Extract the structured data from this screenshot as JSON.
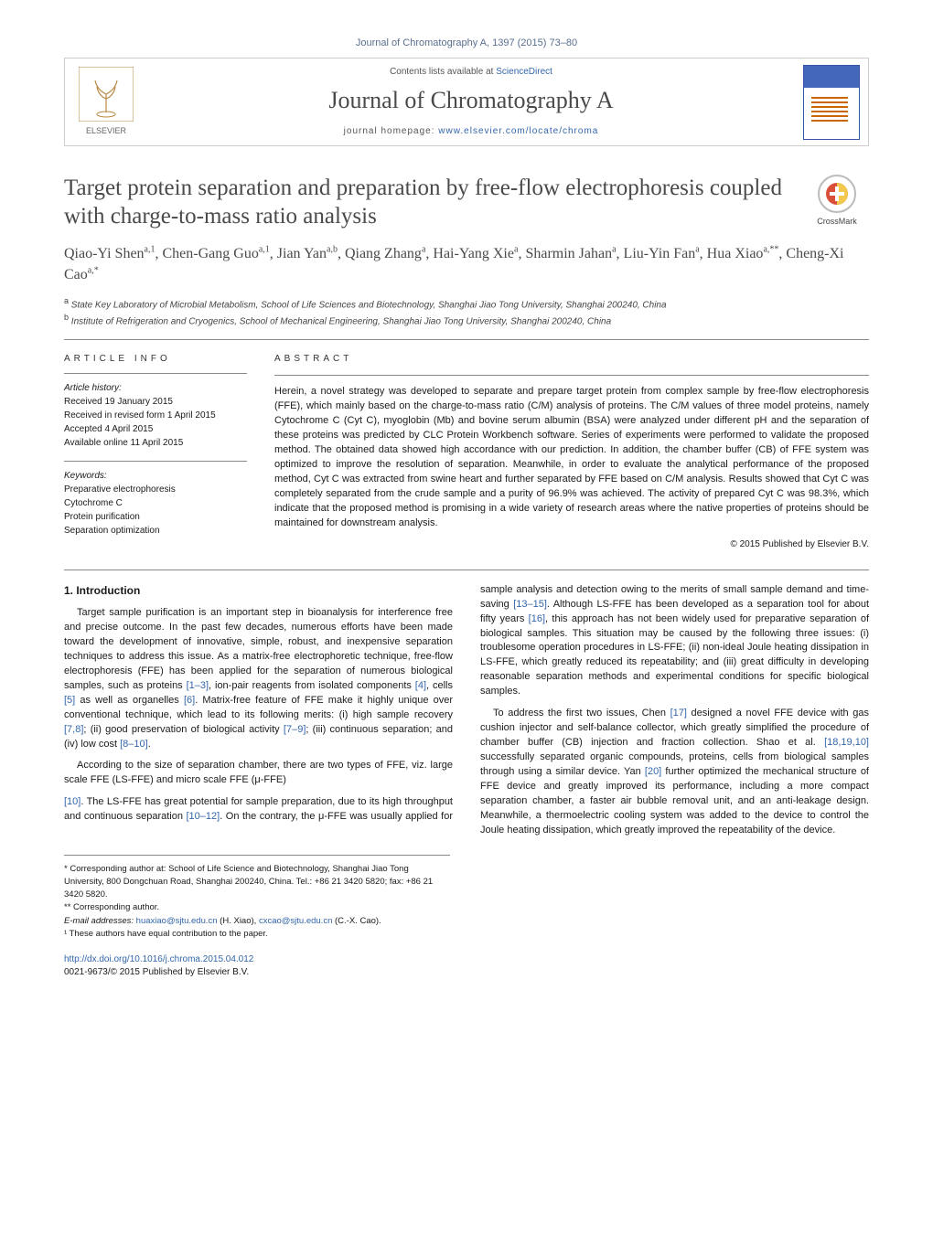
{
  "citation_top": "Journal of Chromatography A, 1397 (2015) 73–80",
  "header": {
    "contents_prefix": "Contents lists available at ",
    "contents_link": "ScienceDirect",
    "journal_name": "Journal of Chromatography A",
    "homepage_prefix": "journal homepage: ",
    "homepage_link": "www.elsevier.com/locate/chroma",
    "publisher": "ELSEVIER"
  },
  "crossmark_label": "CrossMark",
  "title": "Target protein separation and preparation by free-flow electrophoresis coupled with charge-to-mass ratio analysis",
  "authors_html": "Qiao-Yi Shen<sup>a,1</sup>, Chen-Gang Guo<sup>a,1</sup>, Jian Yan<sup>a,b</sup>, Qiang Zhang<sup>a</sup>, Hai-Yang Xie<sup>a</sup>, Sharmin Jahan<sup>a</sup>, Liu-Yin Fan<sup>a</sup>, Hua Xiao<sup>a,**</sup>, Cheng-Xi Cao<sup>a,*</sup>",
  "affiliations": {
    "a": "State Key Laboratory of Microbial Metabolism, School of Life Sciences and Biotechnology, Shanghai Jiao Tong University, Shanghai 200240, China",
    "b": "Institute of Refrigeration and Cryogenics, School of Mechanical Engineering, Shanghai Jiao Tong University, Shanghai 200240, China"
  },
  "article_info": {
    "heading": "ARTICLE INFO",
    "history_label": "Article history:",
    "received": "Received 19 January 2015",
    "revised": "Received in revised form 1 April 2015",
    "accepted": "Accepted 4 April 2015",
    "online": "Available online 11 April 2015",
    "keywords_label": "Keywords:",
    "keywords": [
      "Preparative electrophoresis",
      "Cytochrome C",
      "Protein purification",
      "Separation optimization"
    ]
  },
  "abstract": {
    "heading": "ABSTRACT",
    "body": "Herein, a novel strategy was developed to separate and prepare target protein from complex sample by free-flow electrophoresis (FFE), which mainly based on the charge-to-mass ratio (C/M) analysis of proteins. The C/M values of three model proteins, namely Cytochrome C (Cyt C), myoglobin (Mb) and bovine serum albumin (BSA) were analyzed under different pH and the separation of these proteins was predicted by CLC Protein Workbench software. Series of experiments were performed to validate the proposed method. The obtained data showed high accordance with our prediction. In addition, the chamber buffer (CB) of FFE system was optimized to improve the resolution of separation. Meanwhile, in order to evaluate the analytical performance of the proposed method, Cyt C was extracted from swine heart and further separated by FFE based on C/M analysis. Results showed that Cyt C was completely separated from the crude sample and a purity of 96.9% was achieved. The activity of prepared Cyt C was 98.3%, which indicate that the proposed method is promising in a wide variety of research areas where the native properties of proteins should be maintained for downstream analysis.",
    "copyright": "© 2015 Published by Elsevier B.V."
  },
  "intro": {
    "heading": "1.  Introduction",
    "p1": "Target sample purification is an important step in bioanalysis for interference free and precise outcome. In the past few decades, numerous efforts have been made toward the development of innovative, simple, robust, and inexpensive separation techniques to address this issue. As a matrix-free electrophoretic technique, free-flow electrophoresis (FFE) has been applied for the separation of numerous biological samples, such as proteins [1–3], ion-pair reagents from isolated components [4], cells [5] as well as organelles [6]. Matrix-free feature of FFE make it highly unique over conventional technique, which lead to its following merits: (i) high sample recovery [7,8]; (ii) good preservation of biological activity [7–9]; (iii) continuous separation; and (iv) low cost [8–10].",
    "p2": "According to the size of separation chamber, there are two types of FFE, viz. large scale FFE (LS-FFE) and micro scale FFE (μ-FFE)",
    "p3": "[10]. The LS-FFE has great potential for sample preparation, due to its high throughput and continuous separation [10–12]. On the contrary, the μ-FFE was usually applied for sample analysis and detection owing to the merits of small sample demand and time-saving [13–15]. Although LS-FFE has been developed as a separation tool for about fifty years [16], this approach has not been widely used for preparative separation of biological samples. This situation may be caused by the following three issues: (i) troublesome operation procedures in LS-FFE; (ii) non-ideal Joule heating dissipation in LS-FFE, which greatly reduced its repeatability; and (iii) great difficulty in developing reasonable separation methods and experimental conditions for specific biological samples.",
    "p4": "To address the first two issues, Chen [17] designed a novel FFE device with gas cushion injector and self-balance collector, which greatly simplified the procedure of chamber buffer (CB) injection and fraction collection. Shao et al. [18,19,10] successfully separated organic compounds, proteins, cells from biological samples through using a similar device. Yan [20] further optimized the mechanical structure of FFE device and greatly improved its performance, including a more compact separation chamber, a faster air bubble removal unit, and an anti-leakage design. Meanwhile, a thermoelectric cooling system was added to the device to control the Joule heating dissipation, which greatly improved the repeatability of the device."
  },
  "footer": {
    "corr1": "* Corresponding author at: School of Life Science and Biotechnology, Shanghai Jiao Tong University, 800 Dongchuan Road, Shanghai 200240, China. Tel.: +86 21 3420 5820; fax: +86 21 3420 5820.",
    "corr2": "** Corresponding author.",
    "email_label": "E-mail addresses: ",
    "email1": "huaxiao@sjtu.edu.cn",
    "email1_who": " (H. Xiao), ",
    "email2": "cxcao@sjtu.edu.cn",
    "email2_who": " (C.-X. Cao).",
    "equal": "¹ These authors have equal contribution to the paper.",
    "doi": "http://dx.doi.org/10.1016/j.chroma.2015.04.012",
    "issn": "0021-9673/© 2015 Published by Elsevier B.V."
  },
  "colors": {
    "link": "#3366aa",
    "text": "#1a1a1a",
    "muted": "#4a4a4a",
    "rule": "#888888"
  },
  "typography": {
    "body_pt": 13,
    "title_pt": 25,
    "journal_pt": 26,
    "authors_pt": 16,
    "small_pt": 10
  }
}
